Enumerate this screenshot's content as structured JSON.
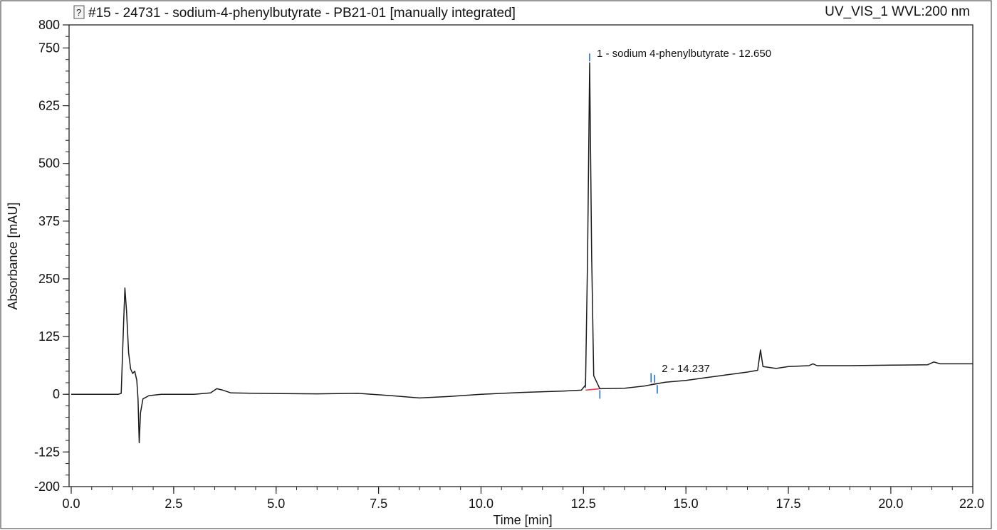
{
  "header": {
    "title": "#15 - 24731 - sodium-4-phenylbutyrate - PB21-01 [manually integrated]",
    "channel": "UV_VIS_1 WVL:200 nm",
    "icon": "question-document-icon"
  },
  "chart_data": {
    "type": "line",
    "xlabel": "Time [min]",
    "ylabel": "Absorbance [mAU]",
    "xlim": [
      0.0,
      22.0
    ],
    "ylim": [
      -200,
      800
    ],
    "x_ticks": [
      "0.0",
      "2.5",
      "5.0",
      "7.5",
      "10.0",
      "12.5",
      "15.0",
      "17.5",
      "20.0",
      "22.0"
    ],
    "x_tick_values": [
      0,
      2.5,
      5,
      7.5,
      10,
      12.5,
      15,
      17.5,
      20,
      22
    ],
    "y_ticks": [
      "-200",
      "-125",
      "0",
      "125",
      "250",
      "375",
      "500",
      "625",
      "750",
      "800"
    ],
    "y_tick_values": [
      -200,
      -125,
      0,
      125,
      250,
      375,
      500,
      625,
      750,
      800
    ],
    "grid": false,
    "colors": {
      "trace": "#1a1a1a",
      "baseline": "#e8394a",
      "marker": "#1f6fd1"
    },
    "series": [
      {
        "points": [
          [
            0.0,
            0
          ],
          [
            1.15,
            0
          ],
          [
            1.22,
            2
          ],
          [
            1.28,
            160
          ],
          [
            1.31,
            230
          ],
          [
            1.35,
            180
          ],
          [
            1.4,
            90
          ],
          [
            1.45,
            55
          ],
          [
            1.5,
            45
          ],
          [
            1.55,
            50
          ],
          [
            1.6,
            30
          ],
          [
            1.63,
            -10
          ],
          [
            1.66,
            -105
          ],
          [
            1.69,
            -40
          ],
          [
            1.75,
            -10
          ],
          [
            1.9,
            -3
          ],
          [
            2.2,
            0
          ],
          [
            3.0,
            0
          ],
          [
            3.4,
            3
          ],
          [
            3.55,
            12
          ],
          [
            3.7,
            9
          ],
          [
            3.9,
            3
          ],
          [
            4.5,
            2
          ],
          [
            6.0,
            1
          ],
          [
            7.0,
            2
          ],
          [
            7.8,
            -3
          ],
          [
            8.5,
            -8
          ],
          [
            9.2,
            -5
          ],
          [
            10.0,
            0
          ],
          [
            11.0,
            4
          ],
          [
            12.0,
            7
          ],
          [
            12.45,
            9
          ],
          [
            12.55,
            20
          ],
          [
            12.6,
            300
          ],
          [
            12.65,
            718
          ],
          [
            12.7,
            300
          ],
          [
            12.75,
            40
          ],
          [
            12.9,
            12
          ],
          [
            13.5,
            13
          ],
          [
            14.0,
            18
          ],
          [
            14.237,
            22
          ],
          [
            14.5,
            26
          ],
          [
            15.0,
            30
          ],
          [
            15.5,
            36
          ],
          [
            16.0,
            42
          ],
          [
            16.5,
            48
          ],
          [
            16.75,
            52
          ],
          [
            16.82,
            96
          ],
          [
            16.88,
            60
          ],
          [
            17.2,
            56
          ],
          [
            17.5,
            60
          ],
          [
            18.0,
            62
          ],
          [
            18.1,
            66
          ],
          [
            18.2,
            62
          ],
          [
            19.0,
            62
          ],
          [
            20.0,
            63
          ],
          [
            20.9,
            64
          ],
          [
            21.05,
            70
          ],
          [
            21.2,
            66
          ],
          [
            22.0,
            66
          ]
        ]
      }
    ],
    "peaks": [
      {
        "label": "1 - sodium 4-phenylbutyrate - 12.650",
        "rt": 12.65,
        "height": 718
      },
      {
        "label": "2 - 14.237",
        "rt": 14.237,
        "height": 22
      }
    ],
    "integration": [
      {
        "start": [
          12.55,
          9
        ],
        "end": [
          12.9,
          12
        ]
      },
      {
        "start": [
          14.15,
          21
        ],
        "end": [
          14.3,
          23
        ]
      }
    ]
  }
}
